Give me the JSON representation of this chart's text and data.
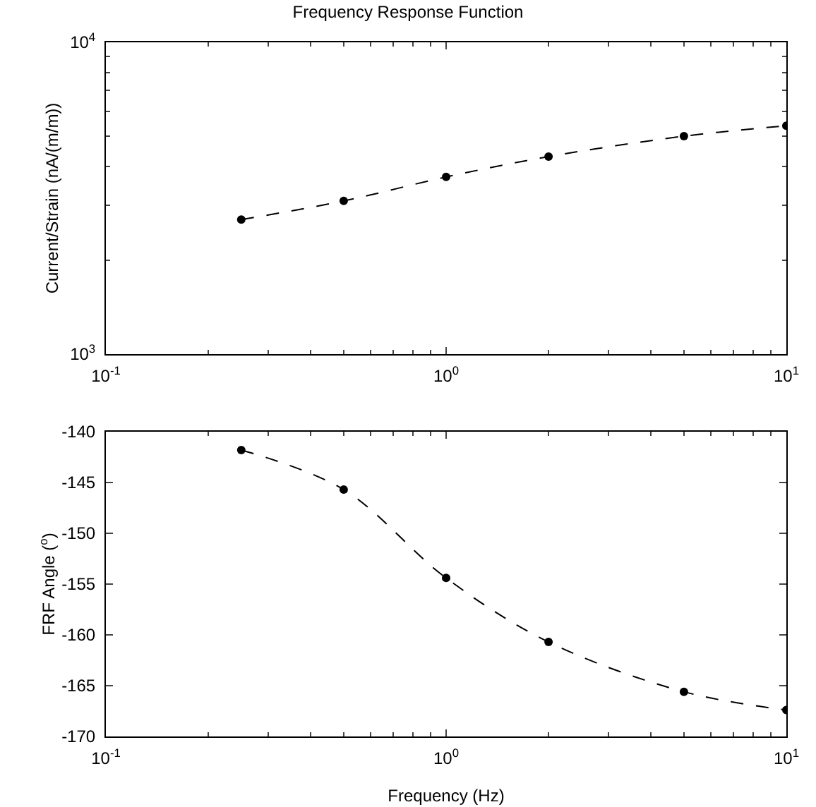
{
  "chart_data": [
    {
      "type": "line",
      "title": "Frequency Response Function",
      "ylabel": "Current/Strain (nA/(m/m))",
      "log": "xy",
      "x": [
        0.25,
        0.5,
        1,
        2,
        5,
        10
      ],
      "series": [
        {
          "color": "#000000",
          "values": [
            2700,
            3100,
            3700,
            4300,
            5000,
            5400
          ]
        }
      ],
      "xlim": [
        0.1,
        10
      ],
      "xticks": [
        {
          "value": 0.1,
          "label": "10$^{-1}$"
        },
        {
          "value": 1,
          "label": "10$^{0}$"
        },
        {
          "value": 10,
          "label": "10$^{1}$"
        }
      ],
      "ylim": [
        1000,
        10000
      ],
      "yticks": [
        {
          "value": 1000,
          "label": "10$^{3}$"
        },
        {
          "value": 10000,
          "label": "10$^{4}$"
        }
      ],
      "grid": false,
      "marker": "circle",
      "line_style": "dashed"
    },
    {
      "type": "line",
      "xlabel": "Frequency (Hz)",
      "ylabel": "FRF Angle ($^{o}$)",
      "log": "x",
      "x": [
        0.25,
        0.5,
        1,
        2,
        5,
        10
      ],
      "series": [
        {
          "color": "#000000",
          "values": [
            -141.8,
            -145.7,
            -154.4,
            -160.7,
            -165.6,
            -167.4
          ]
        }
      ],
      "xlim": [
        0.1,
        10
      ],
      "xticks": [
        {
          "value": 0.1,
          "label": "10$^{-1}$"
        },
        {
          "value": 1,
          "label": "10$^{0}$"
        },
        {
          "value": 10,
          "label": "10$^{1}$"
        }
      ],
      "ylim": [
        -170,
        -140
      ],
      "yticks": [
        -170,
        -165,
        -160,
        -155,
        -150,
        -145,
        -140
      ],
      "grid": false,
      "marker": "circle",
      "line_style": "dashed"
    }
  ]
}
